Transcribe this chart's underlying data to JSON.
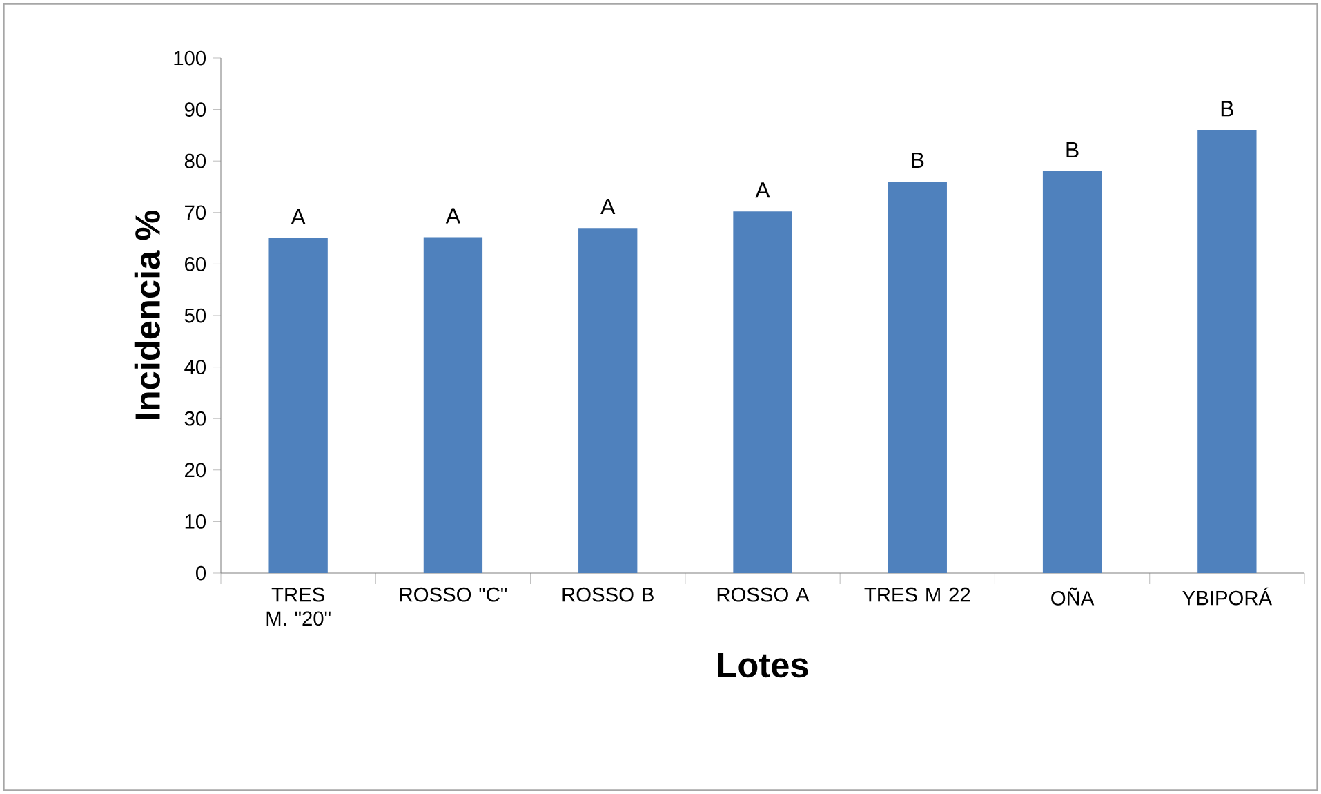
{
  "chart_data": {
    "type": "bar",
    "xlabel": "Lotes",
    "ylabel": "Incidencia %",
    "categories": [
      "TRES M. \"20\"",
      "ROSSO \"C\"",
      "ROSSO B",
      "ROSSO A",
      "TRES M 22",
      "OÑA",
      "YBIPORÁ"
    ],
    "values": [
      65,
      65.2,
      67,
      70.2,
      76,
      78,
      86
    ],
    "value_labels": [
      "A",
      "A",
      "A",
      "A",
      "B",
      "B",
      "B"
    ],
    "color": "#4f81bd",
    "ylim": [
      0,
      100
    ],
    "yticks": [
      0,
      10,
      20,
      30,
      40,
      50,
      60,
      70,
      80,
      90,
      100
    ],
    "grid": false
  }
}
